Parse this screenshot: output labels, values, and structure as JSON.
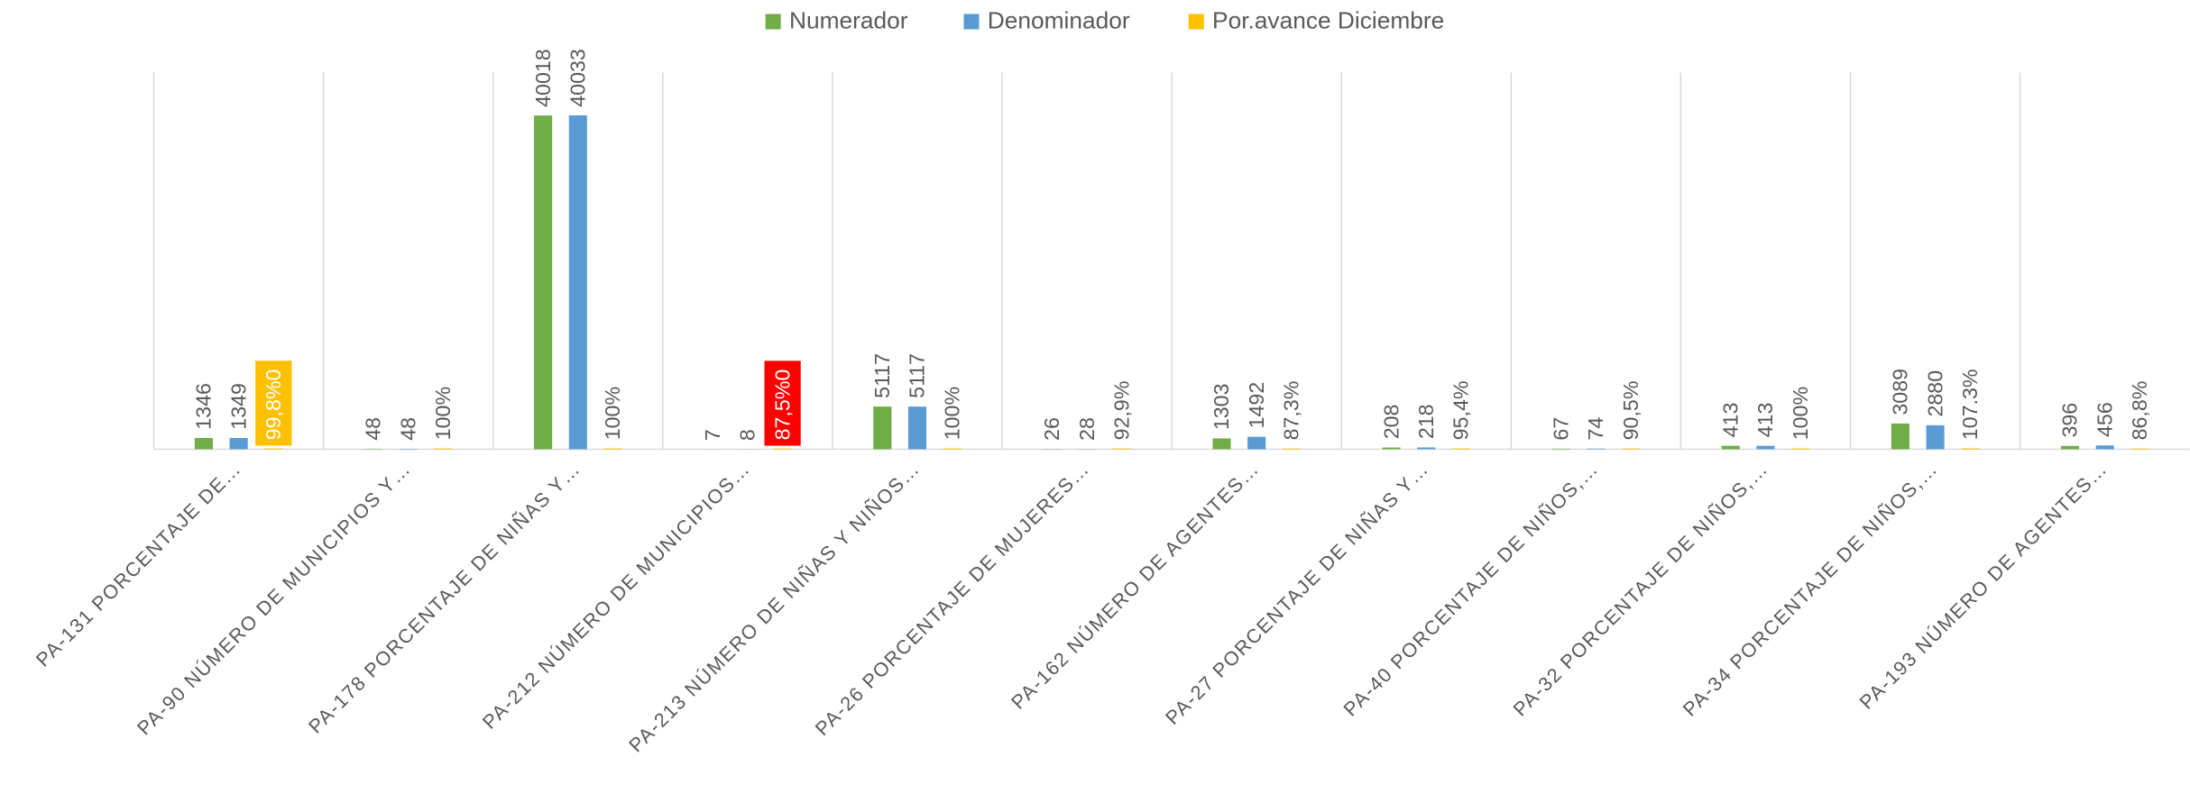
{
  "chart_data": {
    "type": "bar",
    "categories": [
      "PA-131 PORCENTAJE DE…",
      "PA-90 NÚMERO DE MUNICIPIOS Y…",
      "PA-178 PORCENTAJE DE NIÑAS Y…",
      "PA-212 NÚMERO DE MUNICIPIOS…",
      "PA-213 NÚMERO DE NIÑAS Y NIÑOS…",
      "PA-26 PORCENTAJE DE MUJERES…",
      "PA-162 NÚMERO DE AGENTES…",
      "PA-27 PORCENTAJE DE NIÑAS Y…",
      "PA-40 PORCENTAJE DE NIÑOS,…",
      "PA-32 PORCENTAJE DE NIÑOS,…",
      "PA-34 PORCENTAJE DE NIÑOS,…",
      "PA-193 NÚMERO DE AGENTES…"
    ],
    "series": [
      {
        "name": "Numerador",
        "color": "#70ad47",
        "values": [
          1346,
          48,
          40018,
          7,
          5117,
          26,
          1303,
          208,
          67,
          413,
          3089,
          396
        ]
      },
      {
        "name": "Denominador",
        "color": "#5b9bd5",
        "values": [
          1349,
          48,
          40033,
          8,
          5117,
          28,
          1492,
          218,
          74,
          413,
          2880,
          456
        ]
      },
      {
        "name": "Por.avance Diciembre",
        "color": "#ffc000",
        "values": [
          99.8,
          100,
          100,
          87.5,
          100,
          92.9,
          87.3,
          95.4,
          90.5,
          100,
          107.3,
          86.8
        ],
        "value_labels": [
          "99,8%0",
          "100%",
          "100%",
          "87,5%0",
          "100%",
          "92,9%",
          "87,3%",
          "95,4%",
          "90,5%",
          "100%",
          "107.3%",
          "86,8%"
        ],
        "label_highlights": [
          {
            "index": 0,
            "color": "#ffc000"
          },
          {
            "index": 3,
            "color": "#ff0000"
          }
        ]
      }
    ],
    "ylim": [
      0,
      45000
    ],
    "legend": "top"
  }
}
